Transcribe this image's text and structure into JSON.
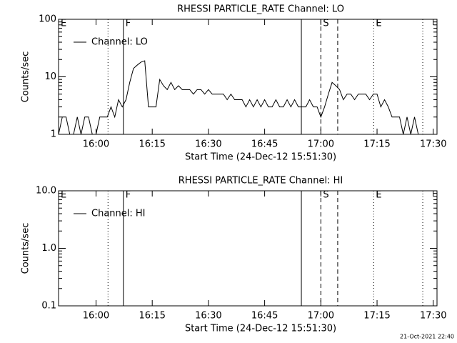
{
  "chart_data": [
    {
      "type": "line",
      "title": "RHESSI PARTICLE_RATE Channel: LO",
      "xlabel": "Start Time (24-Dec-12 15:51:30)",
      "ylabel": "Counts/sec",
      "log_y": true,
      "ylim": [
        1,
        100
      ],
      "yticks": [
        1,
        10,
        100
      ],
      "xlim": [
        950,
        1051
      ],
      "xticks": [
        {
          "value": 960,
          "label": "16:00"
        },
        {
          "value": 975,
          "label": "16:15"
        },
        {
          "value": 990,
          "label": "16:30"
        },
        {
          "value": 1005,
          "label": "16:45"
        },
        {
          "value": 1020,
          "label": "17:00"
        },
        {
          "value": 1035,
          "label": "17:15"
        },
        {
          "value": 1050,
          "label": "17:30"
        }
      ],
      "x": [
        950,
        951,
        952,
        953,
        954,
        955,
        956,
        957,
        958,
        959,
        960,
        961,
        962,
        963,
        964,
        965,
        966,
        967,
        968,
        969,
        970,
        971,
        972,
        973,
        974,
        975,
        976,
        977,
        978,
        979,
        980,
        981,
        982,
        983,
        984,
        985,
        986,
        987,
        988,
        989,
        990,
        991,
        992,
        993,
        994,
        995,
        996,
        997,
        998,
        999,
        1000,
        1001,
        1002,
        1003,
        1004,
        1005,
        1006,
        1007,
        1008,
        1009,
        1010,
        1011,
        1012,
        1013,
        1014,
        1015,
        1016,
        1017,
        1018,
        1019,
        1020,
        1021,
        1022,
        1023,
        1024,
        1025,
        1026,
        1027,
        1028,
        1029,
        1030,
        1031,
        1032,
        1033,
        1034,
        1035,
        1036,
        1037,
        1038,
        1039,
        1040,
        1041,
        1042,
        1043,
        1044,
        1045,
        1046
      ],
      "series": [
        {
          "name": "Channel: LO",
          "color": "#000000",
          "values": [
            1,
            2,
            2,
            1,
            1,
            2,
            1,
            2,
            2,
            1,
            1,
            2,
            2,
            2,
            3,
            2,
            4,
            3,
            4,
            8,
            14,
            16,
            18,
            19,
            3,
            3,
            3,
            9,
            7,
            6,
            8,
            6,
            7,
            6,
            6,
            6,
            5,
            6,
            6,
            5,
            6,
            5,
            5,
            5,
            5,
            4,
            5,
            4,
            4,
            4,
            3,
            4,
            3,
            4,
            3,
            4,
            3,
            3,
            4,
            3,
            3,
            4,
            3,
            4,
            3,
            3,
            3,
            4,
            3,
            3,
            2,
            3,
            5,
            8,
            7,
            6,
            4,
            5,
            5,
            4,
            5,
            5,
            5,
            4,
            5,
            5,
            3,
            4,
            3,
            2,
            2,
            2,
            1,
            2,
            1,
            2,
            1
          ]
        }
      ],
      "markers": [
        {
          "x": 950,
          "label": "E"
        },
        {
          "x": 963.2,
          "style": "dotted"
        },
        {
          "x": 967.3,
          "style": "solid",
          "label": "F"
        },
        {
          "x": 1014.8,
          "style": "solid"
        },
        {
          "x": 1020,
          "style": "dashed",
          "label": "S"
        },
        {
          "x": 1024.5,
          "style": "dashed"
        },
        {
          "x": 1034.1,
          "style": "dotted",
          "label": "E"
        },
        {
          "x": 1047.2,
          "style": "dotted"
        }
      ]
    },
    {
      "type": "line",
      "title": "RHESSI PARTICLE_RATE Channel: HI",
      "xlabel": "Start Time (24-Dec-12 15:51:30)",
      "ylabel": "Counts/sec",
      "log_y": true,
      "ylim": [
        0.1,
        10
      ],
      "yticks": [
        0.1,
        {
          "value": 1,
          "label": "1.0"
        },
        {
          "value": 10,
          "label": "10.0"
        }
      ],
      "xlim": [
        950,
        1051
      ],
      "xticks": [
        {
          "value": 960,
          "label": "16:00"
        },
        {
          "value": 975,
          "label": "16:15"
        },
        {
          "value": 990,
          "label": "16:30"
        },
        {
          "value": 1005,
          "label": "16:45"
        },
        {
          "value": 1020,
          "label": "17:00"
        },
        {
          "value": 1035,
          "label": "17:15"
        },
        {
          "value": 1050,
          "label": "17:30"
        }
      ],
      "series": [
        {
          "name": "Channel: HI",
          "color": "#000000",
          "values": []
        }
      ],
      "markers": [
        {
          "x": 950,
          "label": "E"
        },
        {
          "x": 963.2,
          "style": "dotted"
        },
        {
          "x": 967.3,
          "style": "solid",
          "label": "F"
        },
        {
          "x": 1014.8,
          "style": "solid"
        },
        {
          "x": 1020,
          "style": "dashed",
          "label": "S"
        },
        {
          "x": 1024.5,
          "style": "dashed"
        },
        {
          "x": 1034.1,
          "style": "dotted",
          "label": "E"
        },
        {
          "x": 1047.2,
          "style": "dotted"
        }
      ]
    }
  ],
  "footer": "21-Oct-2021 22:40"
}
